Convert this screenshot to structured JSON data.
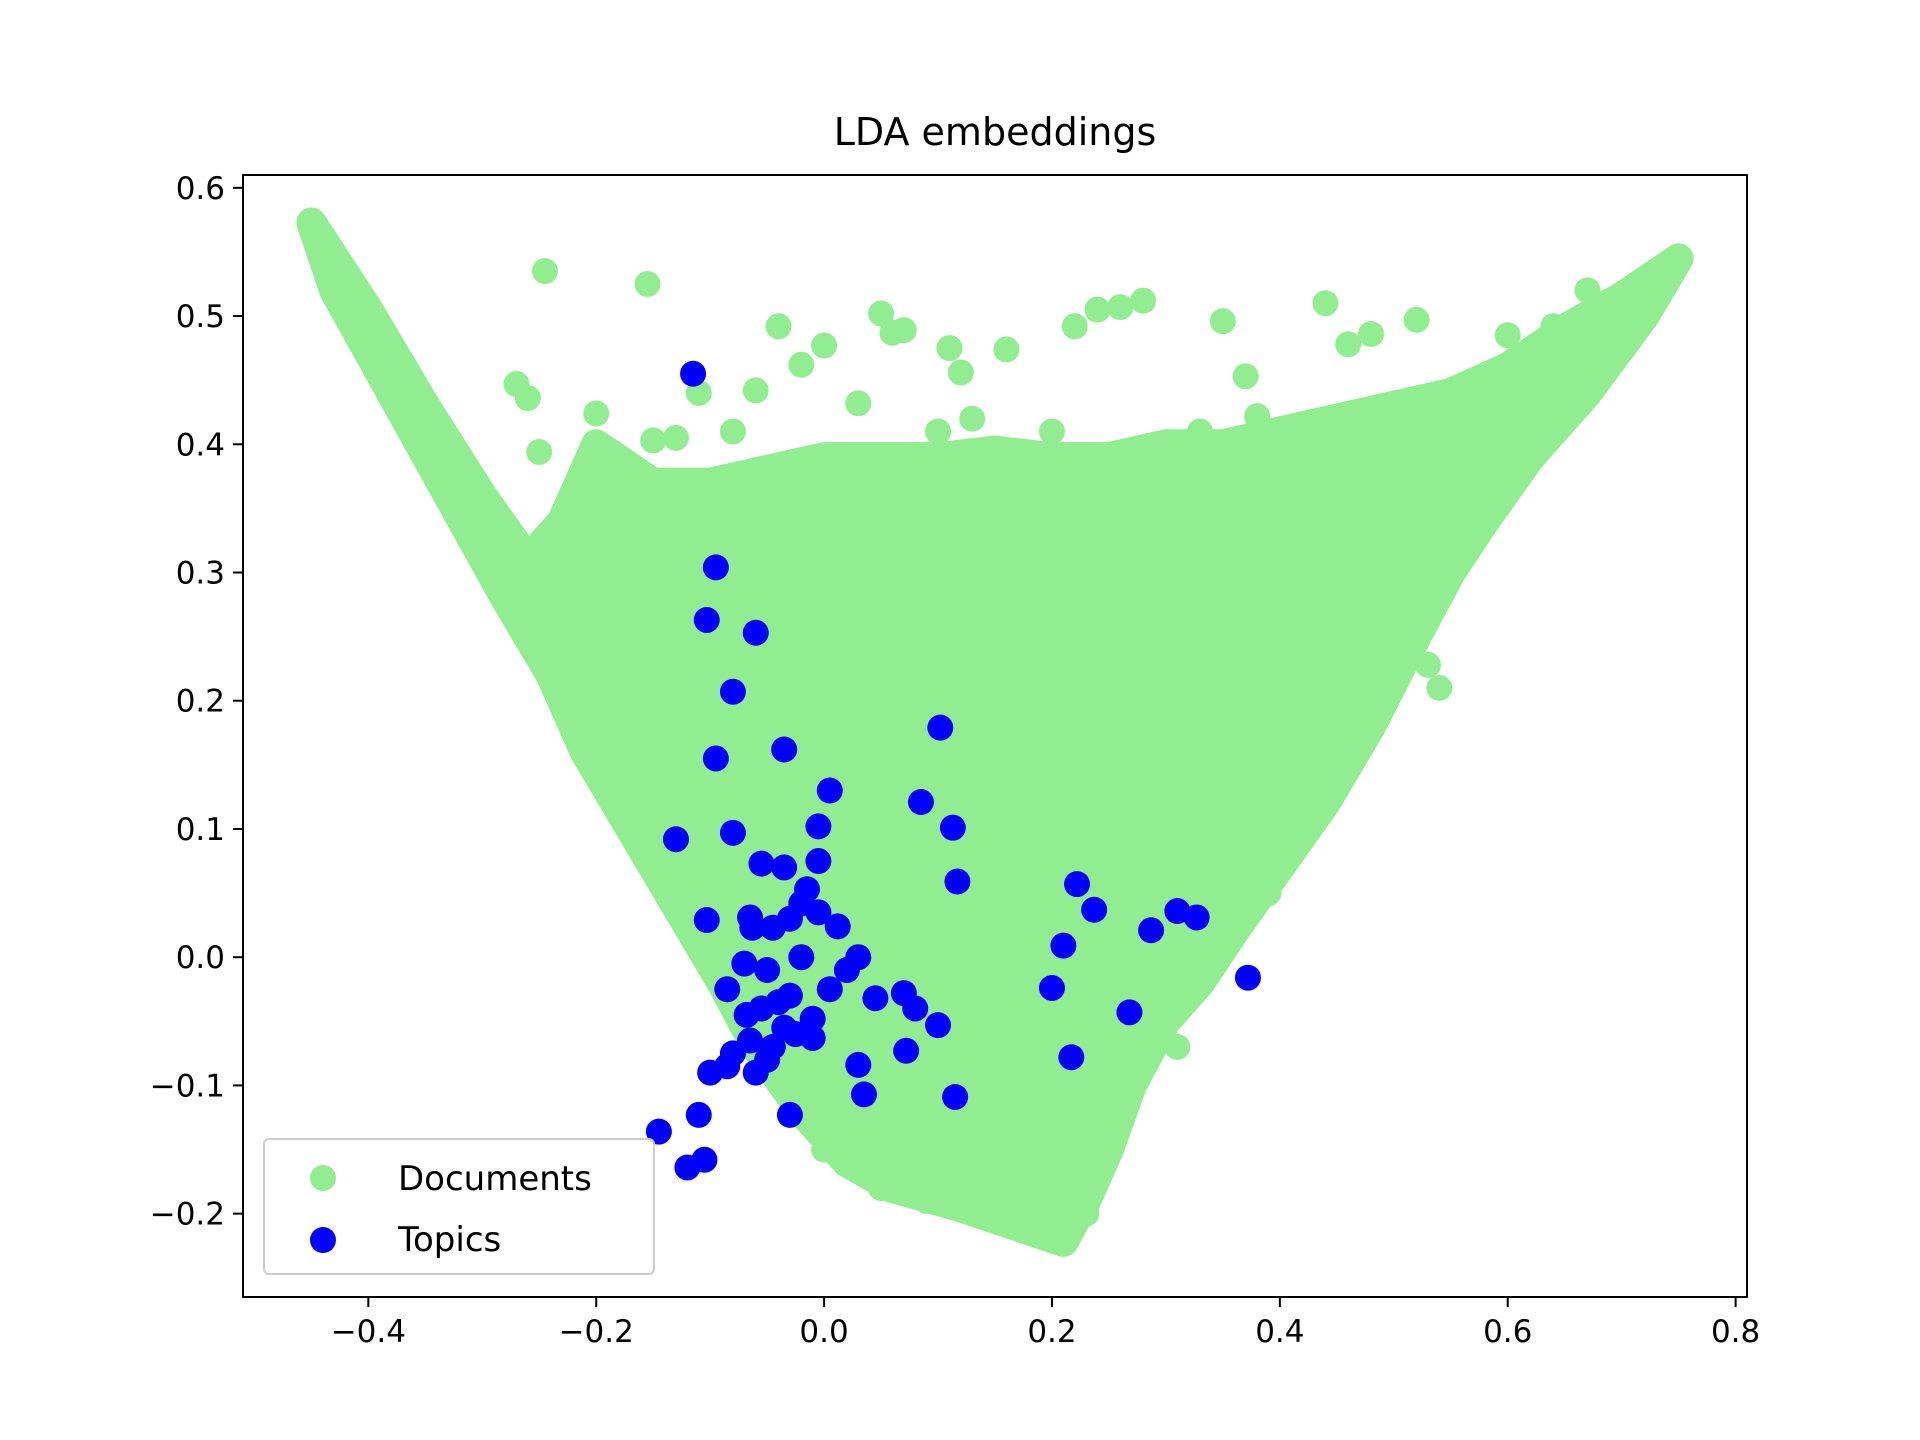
{
  "chart_data": {
    "type": "scatter",
    "title": "LDA embeddings",
    "xlabel": "",
    "ylabel": "",
    "xlim": [
      -0.51,
      0.81
    ],
    "ylim": [
      -0.265,
      0.61
    ],
    "x_ticks": [
      -0.4,
      -0.2,
      0.0,
      0.2,
      0.4,
      0.6,
      0.8
    ],
    "y_ticks": [
      -0.2,
      -0.1,
      0.0,
      0.1,
      0.2,
      0.3,
      0.4,
      0.5,
      0.6
    ],
    "x_tick_labels": [
      "−0.4",
      "−0.2",
      "0.0",
      "0.2",
      "0.4",
      "0.6",
      "0.8"
    ],
    "y_tick_labels": [
      "−0.2",
      "−0.1",
      "0.0",
      "0.1",
      "0.2",
      "0.3",
      "0.4",
      "0.5",
      "0.6"
    ],
    "grid": false,
    "legend": {
      "position": "lower-left"
    },
    "series": [
      {
        "name": "Documents",
        "color": "#90ee90",
        "region_outline": [
          [
            -0.45,
            0.573
          ],
          [
            -0.4,
            0.505
          ],
          [
            -0.35,
            0.43
          ],
          [
            -0.3,
            0.36
          ],
          [
            -0.26,
            0.31
          ],
          [
            -0.23,
            0.34
          ],
          [
            -0.2,
            0.4
          ],
          [
            -0.15,
            0.37
          ],
          [
            -0.1,
            0.37
          ],
          [
            -0.05,
            0.38
          ],
          [
            0.0,
            0.39
          ],
          [
            0.05,
            0.39
          ],
          [
            0.1,
            0.39
          ],
          [
            0.15,
            0.395
          ],
          [
            0.2,
            0.39
          ],
          [
            0.25,
            0.39
          ],
          [
            0.3,
            0.4
          ],
          [
            0.35,
            0.4
          ],
          [
            0.4,
            0.41
          ],
          [
            0.45,
            0.42
          ],
          [
            0.5,
            0.43
          ],
          [
            0.55,
            0.44
          ],
          [
            0.6,
            0.46
          ],
          [
            0.65,
            0.49
          ],
          [
            0.7,
            0.515
          ],
          [
            0.75,
            0.545
          ],
          [
            0.72,
            0.5
          ],
          [
            0.67,
            0.44
          ],
          [
            0.62,
            0.39
          ],
          [
            0.58,
            0.34
          ],
          [
            0.55,
            0.3
          ],
          [
            0.52,
            0.25
          ],
          [
            0.48,
            0.18
          ],
          [
            0.44,
            0.12
          ],
          [
            0.4,
            0.07
          ],
          [
            0.36,
            0.02
          ],
          [
            0.33,
            -0.02
          ],
          [
            0.3,
            -0.05
          ],
          [
            0.27,
            -0.1
          ],
          [
            0.25,
            -0.15
          ],
          [
            0.23,
            -0.19
          ],
          [
            0.21,
            -0.222
          ],
          [
            0.17,
            -0.21
          ],
          [
            0.12,
            -0.195
          ],
          [
            0.06,
            -0.18
          ],
          [
            0.02,
            -0.16
          ],
          [
            -0.02,
            -0.12
          ],
          [
            -0.06,
            -0.07
          ],
          [
            -0.09,
            -0.02
          ],
          [
            -0.13,
            0.04
          ],
          [
            -0.17,
            0.1
          ],
          [
            -0.21,
            0.16
          ],
          [
            -0.24,
            0.22
          ],
          [
            -0.28,
            0.28
          ],
          [
            -0.33,
            0.36
          ],
          [
            -0.38,
            0.44
          ],
          [
            -0.43,
            0.52
          ]
        ],
        "x": [
          -0.45,
          -0.245,
          -0.155,
          -0.27,
          -0.26,
          -0.2,
          -0.25,
          -0.15,
          -0.11,
          -0.06,
          -0.04,
          -0.02,
          0.0,
          0.03,
          0.05,
          0.06,
          0.07,
          0.11,
          0.12,
          0.16,
          0.22,
          0.24,
          0.26,
          0.28,
          0.35,
          0.37,
          0.44,
          0.46,
          0.48,
          0.52,
          0.6,
          0.64,
          0.67,
          0.69,
          0.75,
          0.73,
          0.58,
          0.55,
          0.5,
          0.38,
          0.33,
          0.2,
          0.13,
          0.1,
          -0.08,
          -0.13,
          0.53,
          0.54,
          0.42,
          0.36,
          0.39,
          0.33,
          0.3,
          0.2,
          0.22,
          0.21,
          0.23,
          0.25,
          0.31,
          0.15,
          0.09,
          0.05,
          0.0,
          -0.03,
          0.01,
          0.03
        ],
        "y": [
          0.573,
          0.535,
          0.525,
          0.447,
          0.436,
          0.424,
          0.394,
          0.403,
          0.44,
          0.442,
          0.492,
          0.462,
          0.477,
          0.432,
          0.502,
          0.487,
          0.489,
          0.475,
          0.456,
          0.474,
          0.492,
          0.505,
          0.507,
          0.512,
          0.496,
          0.453,
          0.51,
          0.478,
          0.486,
          0.497,
          0.485,
          0.492,
          0.52,
          0.512,
          0.545,
          0.52,
          0.44,
          0.425,
          0.384,
          0.422,
          0.41,
          0.41,
          0.42,
          0.41,
          0.41,
          0.405,
          0.228,
          0.21,
          0.12,
          0.07,
          0.05,
          0.0,
          -0.02,
          -0.05,
          -0.12,
          -0.17,
          -0.2,
          -0.12,
          -0.07,
          -0.19,
          -0.19,
          -0.18,
          -0.15,
          -0.1,
          -0.06,
          -0.02
        ]
      },
      {
        "name": "Topics",
        "color": "#0000ff",
        "x": [
          -0.115,
          -0.095,
          -0.103,
          -0.06,
          -0.08,
          -0.095,
          -0.035,
          0.005,
          -0.13,
          -0.08,
          -0.055,
          -0.035,
          -0.005,
          -0.005,
          0.085,
          0.113,
          0.102,
          0.117,
          -0.103,
          -0.065,
          -0.063,
          -0.045,
          -0.03,
          -0.015,
          -0.005,
          -0.02,
          0.012,
          -0.07,
          -0.085,
          -0.05,
          -0.02,
          0.005,
          0.03,
          0.02,
          -0.03,
          -0.04,
          -0.055,
          -0.068,
          -0.035,
          -0.025,
          -0.01,
          -0.045,
          -0.065,
          -0.08,
          -0.1,
          -0.085,
          -0.06,
          -0.05,
          -0.11,
          -0.145,
          -0.12,
          -0.105,
          0.045,
          0.07,
          0.08,
          0.1,
          0.03,
          0.035,
          0.072,
          0.115,
          0.2,
          0.21,
          0.222,
          0.237,
          0.217,
          0.268,
          0.287,
          0.31,
          0.327,
          0.372,
          -0.01,
          -0.03
        ],
        "y": [
          0.455,
          0.304,
          0.263,
          0.253,
          0.207,
          0.155,
          0.162,
          0.13,
          0.092,
          0.097,
          0.073,
          0.07,
          0.102,
          0.075,
          0.121,
          0.101,
          0.179,
          0.059,
          0.029,
          0.031,
          0.023,
          0.023,
          0.03,
          0.053,
          0.035,
          0.042,
          0.024,
          -0.005,
          -0.025,
          -0.01,
          0.0,
          -0.025,
          0.0,
          -0.01,
          -0.03,
          -0.035,
          -0.04,
          -0.045,
          -0.055,
          -0.06,
          -0.063,
          -0.07,
          -0.065,
          -0.075,
          -0.09,
          -0.085,
          -0.09,
          -0.08,
          -0.123,
          -0.136,
          -0.164,
          -0.158,
          -0.032,
          -0.028,
          -0.04,
          -0.053,
          -0.084,
          -0.107,
          -0.073,
          -0.109,
          -0.024,
          0.009,
          0.057,
          0.037,
          -0.078,
          -0.043,
          0.021,
          0.036,
          0.031,
          -0.016,
          -0.048,
          -0.123
        ]
      }
    ]
  }
}
